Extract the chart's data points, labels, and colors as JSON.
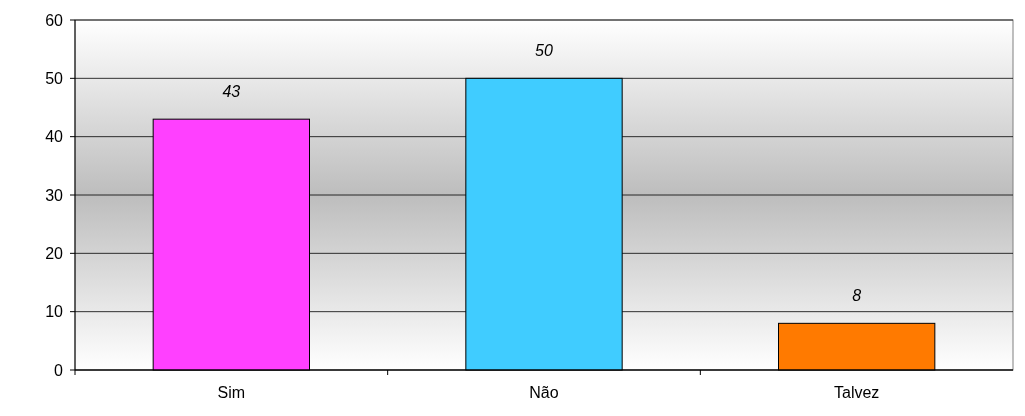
{
  "chart_data": {
    "type": "bar",
    "categories": [
      "Sim",
      "Não",
      "Talvez"
    ],
    "values": [
      43,
      50,
      8
    ],
    "colors": [
      "#ff40ff",
      "#40ccff",
      "#ff7a00"
    ],
    "ylim": [
      0,
      60
    ],
    "yticks": [
      0,
      10,
      20,
      30,
      40,
      50,
      60
    ],
    "grid": "y",
    "data_labels": true
  }
}
